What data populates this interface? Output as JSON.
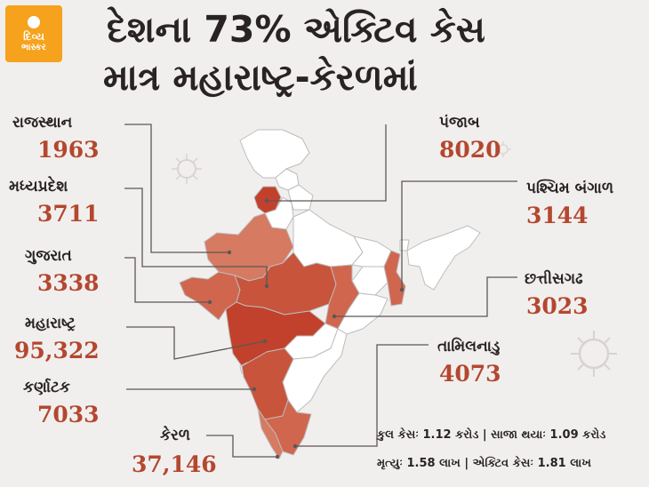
{
  "logo": {
    "line1": "દિવ્ય",
    "line2": "ભાસ્કર"
  },
  "title": {
    "line1": "દેશના 73% એક્ટિવ કેસ",
    "line2": "માત્ર મહારાષ્ટ્ર-કેરળમાં"
  },
  "states": [
    {
      "id": "rajasthan",
      "name": "રાજસ્થાન",
      "cases": "1963"
    },
    {
      "id": "madhya-pradesh",
      "name": "મધ્યપ્રદેશ",
      "cases": "3711"
    },
    {
      "id": "gujarat",
      "name": "ગુજરાત",
      "cases": "3338"
    },
    {
      "id": "maharashtra",
      "name": "મહારાષ્ટ્ર",
      "cases": "95,322"
    },
    {
      "id": "karnataka",
      "name": "કર્ણાટક",
      "cases": "7033"
    },
    {
      "id": "kerala",
      "name": "કેરળ",
      "cases": "37,146"
    },
    {
      "id": "punjab",
      "name": "પંજાબ",
      "cases": "8020"
    },
    {
      "id": "west-bengal",
      "name": "પશ્ચિમ બંગાળ",
      "cases": "3144"
    },
    {
      "id": "chhattisgarh",
      "name": "છત્તીસગઢ",
      "cases": "3023"
    },
    {
      "id": "tamil-nadu",
      "name": "તામિલનાડુ",
      "cases": "4073"
    }
  ],
  "stats": {
    "line1": "કુલ કેસઃ 1.12 કરોડ | સાજા થયાઃ 1.09 કરોડ",
    "line2": "મૃત્યુઃ 1.58 લાખ | એક્ટિવ કેસઃ 1.81 લાખ"
  },
  "colors": {
    "background": "#f1efee",
    "label_value": "#b4472f",
    "state_dark": "#c2412c",
    "state_mid": "#d0664e",
    "state_light": "#e0957c",
    "state_pale": "#eab39f",
    "state_none": "#ffffff",
    "border": "#bfbfbf"
  }
}
